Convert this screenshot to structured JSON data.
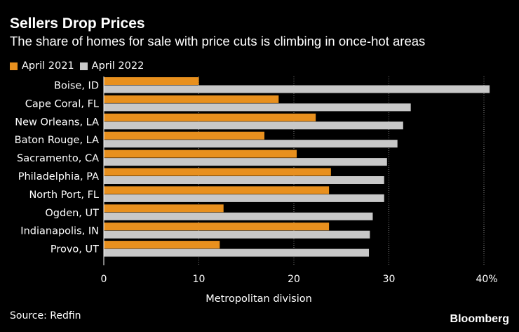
{
  "title": "Sellers Drop Prices",
  "subtitle": "The share of homes for sale with price cuts is climbing in once-hot areas",
  "legend": [
    {
      "label": "April 2021",
      "color": "#E8901E"
    },
    {
      "label": "April 2022",
      "color": "#C8C8C8"
    }
  ],
  "source": "Source: Redfin",
  "brand": "Bloomberg",
  "chart_data": {
    "type": "bar",
    "orientation": "horizontal",
    "title": "Sellers Drop Prices",
    "xlabel": "Metropolitan division",
    "ylabel": "",
    "xlim": [
      0,
      40
    ],
    "ticks": [
      "0",
      "10",
      "20",
      "30",
      "40%"
    ],
    "tick_values": [
      0,
      10,
      20,
      30,
      40
    ],
    "grid": true,
    "categories": [
      "Boise, ID",
      "Cape Coral, FL",
      "New Orleans, LA",
      "Baton Rouge, LA",
      "Sacramento, CA",
      "Philadelphia, PA",
      "North Port, FL",
      "Ogden, UT",
      "Indianapolis, IN",
      "Provo, UT"
    ],
    "series": [
      {
        "name": "April 2021",
        "color": "#E8901E",
        "values": [
          10.0,
          18.4,
          22.3,
          16.9,
          20.3,
          23.9,
          23.7,
          12.6,
          23.7,
          12.2
        ]
      },
      {
        "name": "April 2022",
        "color": "#C8C8C8",
        "values": [
          40.6,
          32.3,
          31.5,
          30.9,
          29.8,
          29.5,
          29.5,
          28.3,
          28.0,
          27.9
        ]
      }
    ]
  }
}
